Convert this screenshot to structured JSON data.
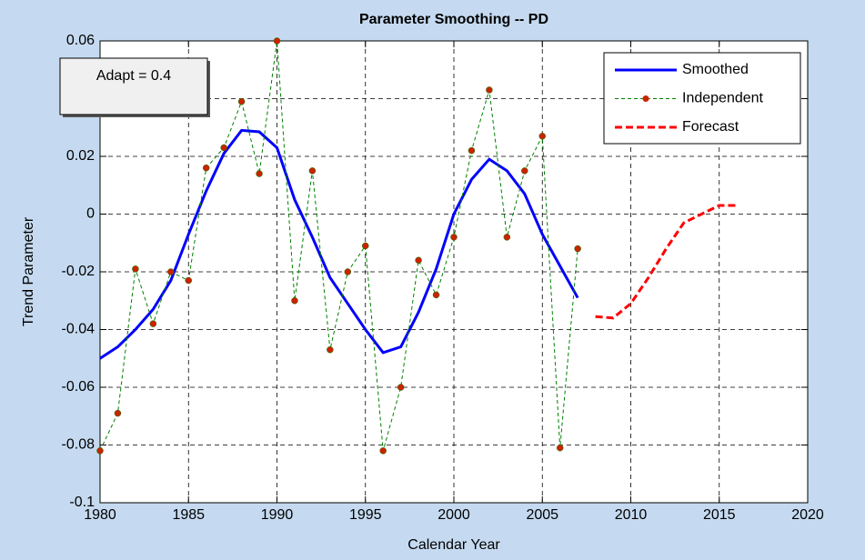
{
  "chart_data": {
    "type": "line",
    "title": "Parameter Smoothing -- PD",
    "xlabel": "Calendar Year",
    "ylabel": "Trend Parameter",
    "annotation": "Adapt = 0.4",
    "xlim": [
      1980,
      2020
    ],
    "xticks": [
      1980,
      1985,
      1990,
      1995,
      2000,
      2005,
      2010,
      2015,
      2020
    ],
    "ylim": [
      -0.1,
      0.06
    ],
    "yticks": [
      -0.1,
      -0.08,
      -0.06,
      -0.04,
      -0.02,
      0,
      0.02,
      0.04,
      0.06
    ],
    "grid": true,
    "legend": "northeast",
    "series": [
      {
        "name": "Smoothed",
        "color": "#0000ff",
        "line_style": "solid",
        "x": [
          1980,
          1981,
          1982,
          1983,
          1984,
          1985,
          1986,
          1987,
          1988,
          1989,
          1990,
          1991,
          1992,
          1993,
          1994,
          1995,
          1996,
          1997,
          1998,
          1999,
          2000,
          2001,
          2002,
          2003,
          2004,
          2005,
          2006,
          2007
        ],
        "values": [
          -0.05,
          -0.046,
          -0.04,
          -0.033,
          -0.023,
          -0.007,
          0.008,
          0.021,
          0.029,
          0.0285,
          0.023,
          0.005,
          -0.008,
          -0.022,
          -0.031,
          -0.04,
          -0.048,
          -0.046,
          -0.034,
          -0.019,
          0.0,
          0.012,
          0.019,
          0.015,
          0.007,
          -0.007,
          -0.018,
          -0.029
        ]
      },
      {
        "name": "Independent",
        "color": "#008000",
        "line_style": "dashed-thin",
        "marker_color": "#cc2200",
        "x": [
          1980,
          1981,
          1982,
          1983,
          1984,
          1985,
          1986,
          1987,
          1988,
          1989,
          1990,
          1991,
          1992,
          1993,
          1994,
          1995,
          1996,
          1997,
          1998,
          1999,
          2000,
          2001,
          2002,
          2003,
          2004,
          2005,
          2006,
          2007
        ],
        "values": [
          -0.082,
          -0.069,
          -0.019,
          -0.038,
          -0.02,
          -0.023,
          0.016,
          0.023,
          0.039,
          0.014,
          0.06,
          -0.03,
          0.015,
          -0.047,
          -0.02,
          -0.011,
          -0.082,
          -0.06,
          -0.016,
          -0.028,
          -0.008,
          0.022,
          0.043,
          -0.008,
          0.015,
          0.027,
          -0.081,
          -0.012
        ]
      },
      {
        "name": "Forecast",
        "color": "#ff0000",
        "line_style": "dashed",
        "x": [
          2008,
          2009,
          2010,
          2011,
          2012,
          2013,
          2014,
          2015,
          2016
        ],
        "values": [
          -0.0355,
          -0.036,
          -0.031,
          -0.022,
          -0.012,
          -0.003,
          0.0,
          0.003,
          0.003
        ]
      }
    ]
  }
}
